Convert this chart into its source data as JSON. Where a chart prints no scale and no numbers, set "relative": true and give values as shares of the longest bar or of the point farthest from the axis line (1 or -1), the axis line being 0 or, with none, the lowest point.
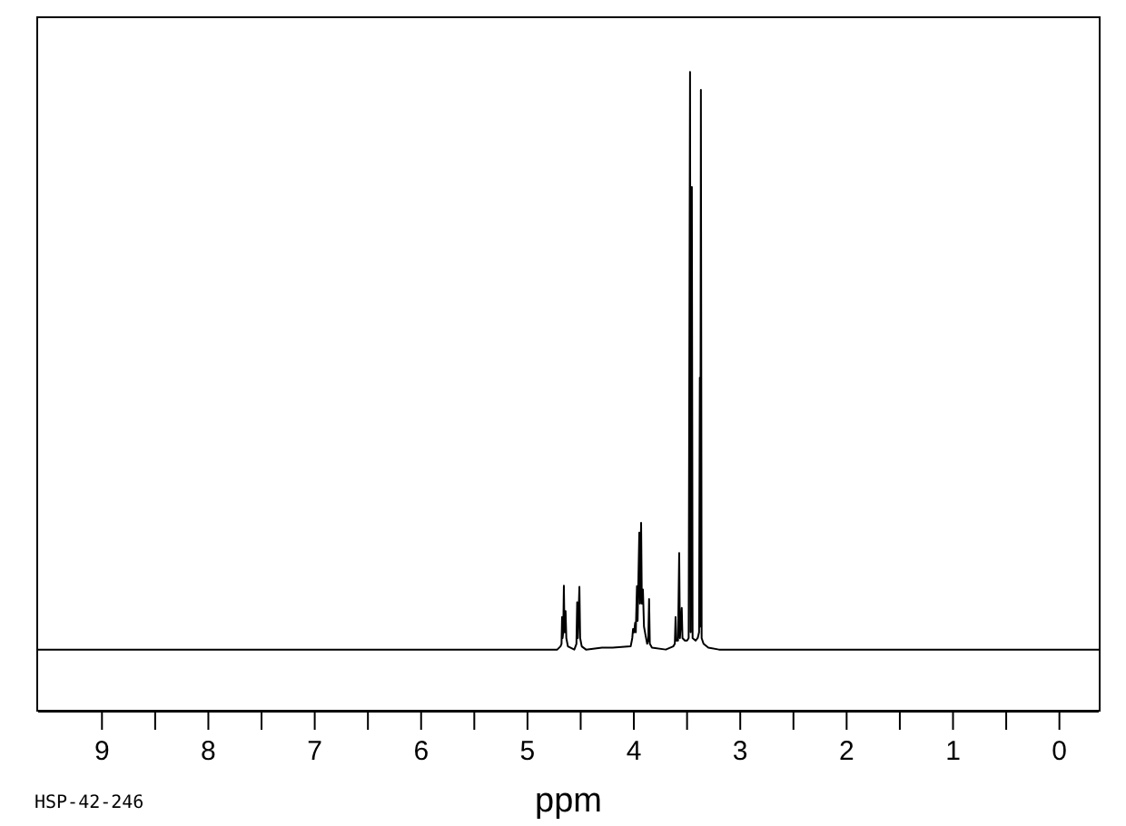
{
  "chart_data": {
    "type": "line",
    "xlabel": "ppm",
    "annotations": [
      "HSP-42-246"
    ],
    "relative": true,
    "color": "#000000",
    "marker": "none",
    "x": [
      9.6,
      4.72,
      4.69,
      4.68,
      4.675,
      4.67,
      4.664,
      4.658,
      4.652,
      4.642,
      4.635,
      4.62,
      4.56,
      4.54,
      4.533,
      4.527,
      4.512,
      4.505,
      4.49,
      4.45,
      4.3,
      4.25,
      4.2,
      4.03,
      4.015,
      4.008,
      3.998,
      3.988,
      3.982,
      3.971,
      3.965,
      3.949,
      3.943,
      3.932,
      3.925,
      3.915,
      3.905,
      3.891,
      3.875,
      3.865,
      3.857,
      3.85,
      3.83,
      3.7,
      3.63,
      3.615,
      3.608,
      3.602,
      3.585,
      3.574,
      3.567,
      3.55,
      3.543,
      3.52,
      3.5,
      3.485,
      3.472,
      3.466,
      3.455,
      3.448,
      3.42,
      3.4,
      3.387,
      3.38,
      3.376,
      3.37,
      3.363,
      3.345,
      3.3,
      3.2,
      -0.37
    ],
    "values": [
      0.097,
      0.097,
      0.102,
      0.106,
      0.148,
      0.115,
      0.124,
      0.197,
      0.124,
      0.157,
      0.115,
      0.102,
      0.097,
      0.106,
      0.171,
      0.115,
      0.195,
      0.115,
      0.102,
      0.097,
      0.1,
      0.1,
      0.1,
      0.102,
      0.115,
      0.129,
      0.124,
      0.139,
      0.124,
      0.196,
      0.142,
      0.28,
      0.169,
      0.295,
      0.169,
      0.191,
      0.133,
      0.12,
      0.106,
      0.111,
      0.176,
      0.106,
      0.1,
      0.097,
      0.102,
      0.106,
      0.148,
      0.111,
      0.111,
      0.248,
      0.115,
      0.162,
      0.115,
      0.111,
      0.111,
      0.115,
      1,
      0.124,
      0.82,
      0.115,
      0.111,
      0.115,
      0.124,
      0.522,
      0.133,
      0.972,
      0.115,
      0.106,
      0.1,
      0.097,
      0.097
    ],
    "xlim": [
      9.6,
      -0.37
    ],
    "xticks": [
      9,
      {
        "value": 8.5,
        "label": null
      },
      8,
      {
        "value": 7.5,
        "label": null
      },
      7,
      {
        "value": 6.5,
        "label": null
      },
      6,
      {
        "value": 5.5,
        "label": null
      },
      5,
      {
        "value": 4.5,
        "label": null
      },
      4,
      {
        "value": 3.5,
        "label": null
      },
      3,
      {
        "value": 2.5,
        "label": null
      },
      2,
      {
        "value": 1.5,
        "label": null
      },
      1,
      {
        "value": 0.5,
        "label": null
      },
      0
    ]
  }
}
